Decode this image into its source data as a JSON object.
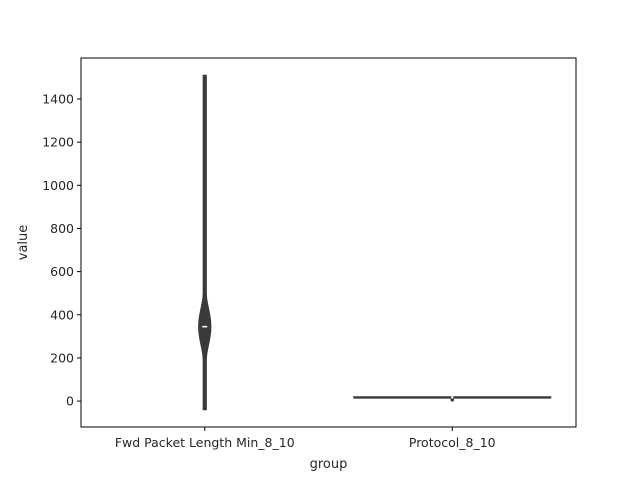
{
  "chart_data": {
    "type": "violin",
    "xlabel": "group",
    "ylabel": "value",
    "ylim": [
      -120,
      1590
    ],
    "yticks": [
      0,
      200,
      400,
      600,
      800,
      1000,
      1200,
      1400
    ],
    "grid": false,
    "legend": "none",
    "groups": [
      {
        "name": "Fwd Packet Length Min_8_10",
        "min": -40,
        "max": 1510,
        "q1": 320,
        "median": 345,
        "q3": 400,
        "whisker_low": 220,
        "whisker_high": 460,
        "max_half_width": 0.025
      },
      {
        "name": "Protocol_8_10",
        "min": 6,
        "max": 17,
        "q1": 17,
        "median": 17,
        "q3": 17,
        "whisker_low": 6,
        "whisker_high": 17,
        "max_half_width": 0.4
      }
    ],
    "colors": {
      "violin_fill": "#3a3a3a",
      "box_fill": "#3a3a3a",
      "median_marker": "#ffffff",
      "axis": "#000000",
      "text": "#262626"
    }
  }
}
